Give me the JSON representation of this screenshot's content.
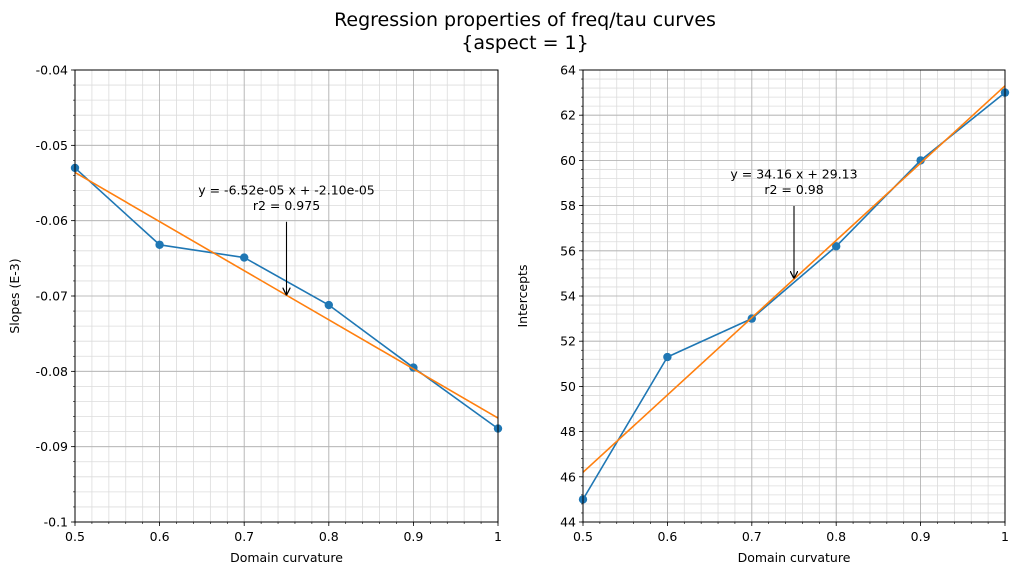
{
  "suptitle": [
    "Regression properties of freq/tau curves",
    "{aspect = 1}"
  ],
  "colors": {
    "data": "#1f77b4",
    "fit": "#ff7f0e",
    "grid_major": "#b0b0b0",
    "grid_minor": "#dcdcdc"
  },
  "chart_data": [
    {
      "type": "line",
      "xlabel": "Domain curvature",
      "ylabel": "Slopes (E-3)",
      "xlim": [
        0.5,
        1.0
      ],
      "ylim": [
        -0.1,
        -0.04
      ],
      "x_ticks": [
        0.5,
        0.6,
        0.7,
        0.8,
        0.9,
        1.0
      ],
      "x_tick_labels": [
        "0.5",
        "0.6",
        "0.7",
        "0.8",
        "0.9",
        "1"
      ],
      "y_ticks": [
        -0.1,
        -0.09,
        -0.08,
        -0.07,
        -0.06,
        -0.05,
        -0.04
      ],
      "y_tick_labels": [
        "-0.1",
        "-0.09",
        "-0.08",
        "-0.07",
        "-0.06",
        "-0.05",
        "-0.04"
      ],
      "grid": true,
      "series": [
        {
          "color": "#1f77b4",
          "marker": "circle",
          "x": [
            0.5,
            0.6,
            0.7,
            0.8,
            0.9,
            1.0
          ],
          "y": [
            -0.053,
            -0.0632,
            -0.0649,
            -0.0712,
            -0.0795,
            -0.0876
          ]
        },
        {
          "color": "#ff7f0e",
          "marker": "none",
          "x": [
            0.5,
            1.0
          ],
          "y": [
            -0.0536,
            -0.0862
          ]
        }
      ],
      "annotation": {
        "lines": [
          "y = -6.52e-05 x + -2.10e-05",
          "r2 = 0.975"
        ],
        "text_at": [
          0.75,
          -0.0565
        ],
        "arrow_to": [
          0.75,
          -0.0698
        ]
      }
    },
    {
      "type": "line",
      "xlabel": "Domain curvature",
      "ylabel": "Intercepts",
      "xlim": [
        0.5,
        1.0
      ],
      "ylim": [
        44,
        64
      ],
      "x_ticks": [
        0.5,
        0.6,
        0.7,
        0.8,
        0.9,
        1.0
      ],
      "x_tick_labels": [
        "0.5",
        "0.6",
        "0.7",
        "0.8",
        "0.9",
        "1"
      ],
      "y_ticks": [
        44,
        46,
        48,
        50,
        52,
        54,
        56,
        58,
        60,
        62,
        64
      ],
      "y_tick_labels": [
        "44",
        "46",
        "48",
        "50",
        "52",
        "54",
        "56",
        "58",
        "60",
        "62",
        "64"
      ],
      "grid": true,
      "series": [
        {
          "color": "#1f77b4",
          "marker": "circle",
          "x": [
            0.5,
            0.6,
            0.7,
            0.8,
            0.9,
            1.0
          ],
          "y": [
            45.0,
            51.3,
            53.0,
            56.2,
            60.0,
            63.0
          ]
        },
        {
          "color": "#ff7f0e",
          "marker": "none",
          "x": [
            0.5,
            1.0
          ],
          "y": [
            46.2,
            63.3
          ]
        }
      ],
      "annotation": {
        "lines": [
          "y = 34.16 x + 29.13",
          "r2 = 0.98"
        ],
        "text_at": [
          0.75,
          59.2
        ],
        "arrow_to": [
          0.75,
          54.8
        ]
      }
    }
  ]
}
